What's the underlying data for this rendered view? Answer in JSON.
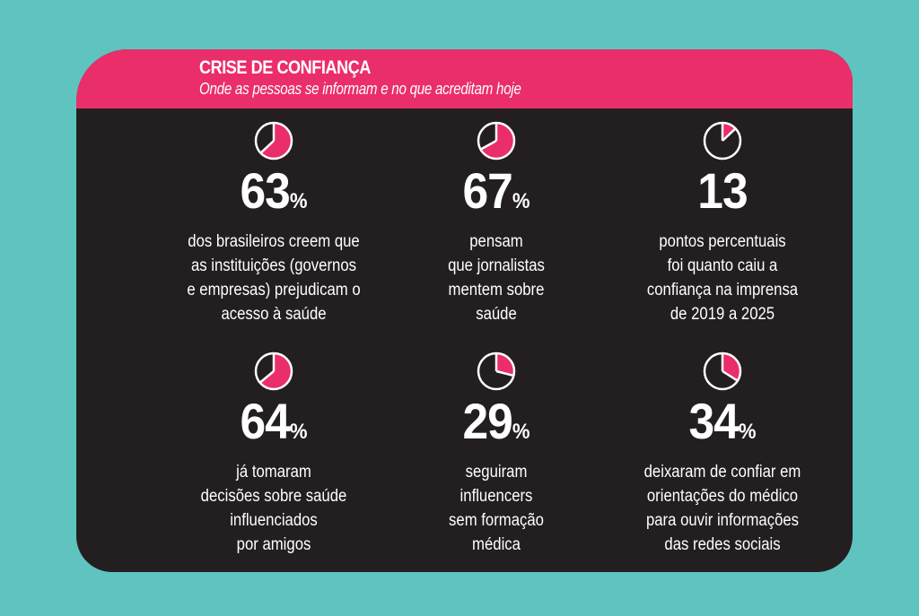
{
  "header": {
    "title": "CRISE DE CONFIANÇA",
    "subtitle": "Onde as pessoas se informam e no que acreditam hoje"
  },
  "colors": {
    "background": "#5fc4bf",
    "accent": "#ea2e69",
    "card": "#231f20",
    "text": "#ffffff"
  },
  "stats": [
    {
      "value": "63",
      "unit": "%",
      "pie_fraction": 0.63,
      "icon": "pie-chart-icon",
      "lines": [
        "dos brasileiros creem que",
        "as instituições (governos",
        "e empresas) prejudicam o",
        "acesso à saúde"
      ]
    },
    {
      "value": "67",
      "unit": "%",
      "pie_fraction": 0.67,
      "icon": "pie-chart-icon",
      "lines": [
        "pensam",
        "que jornalistas",
        "mentem sobre",
        "saúde"
      ]
    },
    {
      "value": "13",
      "unit": "",
      "pie_fraction": 0.13,
      "icon": "pie-chart-icon",
      "lines": [
        "pontos percentuais",
        "foi quanto caiu a",
        "confiança na imprensa",
        "de 2019 a 2025"
      ]
    },
    {
      "value": "64",
      "unit": "%",
      "pie_fraction": 0.64,
      "icon": "pie-chart-icon",
      "lines": [
        "já tomaram",
        "decisões sobre saúde",
        "influenciados",
        "por amigos"
      ]
    },
    {
      "value": "29",
      "unit": "%",
      "pie_fraction": 0.29,
      "icon": "pie-chart-icon",
      "lines": [
        "seguiram",
        "influencers",
        "sem formação",
        "médica"
      ]
    },
    {
      "value": "34",
      "unit": "%",
      "pie_fraction": 0.34,
      "icon": "pie-chart-icon",
      "lines": [
        "deixaram de confiar em",
        "orientações do médico",
        "para ouvir informações",
        "das redes sociais"
      ]
    }
  ]
}
